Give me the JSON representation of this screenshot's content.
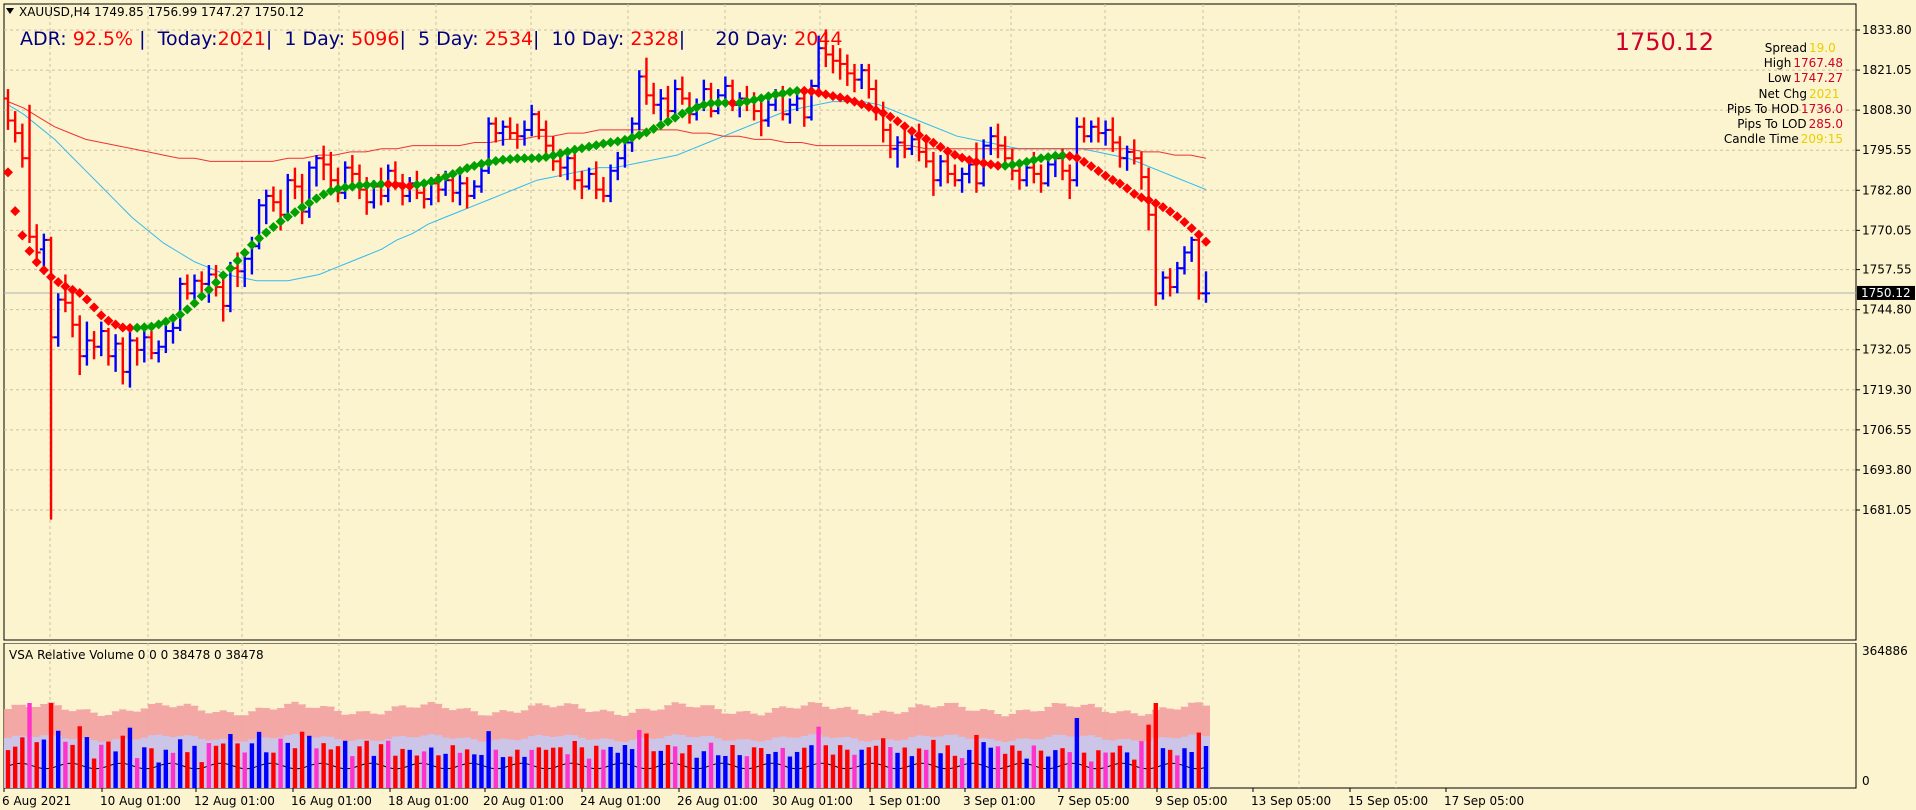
{
  "header": {
    "symbol_line": "XAUUSD,H4  1749.85 1756.99 1747.27 1750.12",
    "adr": {
      "adr_label": "ADR:",
      "adr_value": "92.5%",
      "today_label": "Today:",
      "today_value": "2021",
      "d1_label": "1 Day:",
      "d1_value": "5096",
      "d5_label": "5 Day:",
      "d5_value": "2534",
      "d10_label": "10 Day:",
      "d10_value": "2328",
      "d20_label": "20 Day:",
      "d20_value": "2044"
    }
  },
  "info_panel": {
    "price": "1750.12",
    "rows": [
      {
        "label": "Spread",
        "value": "19.0",
        "color": "#e6d000"
      },
      {
        "label": "High",
        "value": "1767.48",
        "color": "#d0002a"
      },
      {
        "label": "Low",
        "value": "1747.27",
        "color": "#d0002a"
      },
      {
        "label": "Net Chg",
        "value": "2021",
        "color": "#e6d000"
      },
      {
        "label": "Pips To HOD",
        "value": "1736.0",
        "color": "#d0002a"
      },
      {
        "label": "Pips To LOD",
        "value": "285.0",
        "color": "#d0002a"
      },
      {
        "label": "Candle Time",
        "value": "209:15",
        "color": "#e6d000"
      }
    ]
  },
  "colors": {
    "background": "#fcf3cf",
    "up_bar": "#0000ff",
    "down_bar": "#ff0000",
    "grid": "#c9c0a0",
    "ma_fast": "#33bbee",
    "ma_slow": "#ee3333",
    "trend_up": "#00a000",
    "trend_down": "#ff0000"
  },
  "volume_panel": {
    "label": "VSA Relative Volume 0 0 0 38478 0 38478",
    "y_max": "364886",
    "y_min": "0"
  },
  "current_price_label": "1750.12",
  "chart_data": {
    "type": "bar",
    "title": "XAUUSD,H4",
    "ylim": [
      1674,
      1840
    ],
    "grid": true,
    "y_ticks": [
      "1833.80",
      "1821.05",
      "1808.30",
      "1795.55",
      "1782.80",
      "1770.05",
      "1757.55",
      "1744.80",
      "1732.05",
      "1719.30",
      "1706.55",
      "1693.80",
      "1681.05"
    ],
    "x_labels": [
      "6 Aug 2021",
      "10 Aug 01:00",
      "12 Aug 01:00",
      "16 Aug 01:00",
      "18 Aug 01:00",
      "20 Aug 01:00",
      "24 Aug 01:00",
      "26 Aug 01:00",
      "30 Aug 01:00",
      "1 Sep 01:00",
      "3 Sep 01:00",
      "7 Sep 05:00",
      "9 Sep 05:00",
      "13 Sep 05:00",
      "15 Sep 05:00",
      "17 Sep 05:00"
    ],
    "bars": [
      [
        1812,
        1815,
        1802,
        1805
      ],
      [
        1805,
        1808,
        1798,
        1801
      ],
      [
        1801,
        1804,
        1790,
        1793
      ],
      [
        1793,
        1810,
        1766,
        1768
      ],
      [
        1768,
        1772,
        1760,
        1763
      ],
      [
        1764,
        1769,
        1756,
        1767
      ],
      [
        1767,
        1768,
        1678,
        1736
      ],
      [
        1736,
        1750,
        1733,
        1748
      ],
      [
        1748,
        1756,
        1744,
        1747
      ],
      [
        1747,
        1751,
        1736,
        1740
      ],
      [
        1740,
        1743,
        1724,
        1730
      ],
      [
        1730,
        1741,
        1727,
        1735
      ],
      [
        1735,
        1738,
        1729,
        1733
      ],
      [
        1733,
        1741,
        1730,
        1738
      ],
      [
        1738,
        1739,
        1727,
        1730
      ],
      [
        1730,
        1737,
        1725,
        1734
      ],
      [
        1734,
        1736,
        1721,
        1725
      ],
      [
        1725,
        1738,
        1720,
        1735
      ],
      [
        1735,
        1736,
        1727,
        1732
      ],
      [
        1732,
        1738,
        1728,
        1736
      ],
      [
        1736,
        1738,
        1729,
        1731
      ],
      [
        1731,
        1735,
        1728,
        1733
      ],
      [
        1733,
        1740,
        1731,
        1738
      ],
      [
        1738,
        1741,
        1734,
        1739
      ],
      [
        1739,
        1755,
        1738,
        1753
      ],
      [
        1753,
        1756,
        1748,
        1750
      ],
      [
        1750,
        1756,
        1746,
        1754
      ],
      [
        1754,
        1757,
        1750,
        1753
      ],
      [
        1753,
        1759,
        1747,
        1756
      ],
      [
        1756,
        1759,
        1749,
        1752
      ],
      [
        1752,
        1756,
        1741,
        1746
      ],
      [
        1746,
        1760,
        1744,
        1758
      ],
      [
        1758,
        1763,
        1752,
        1757
      ],
      [
        1757,
        1763,
        1752,
        1761
      ],
      [
        1761,
        1768,
        1756,
        1765
      ],
      [
        1765,
        1780,
        1764,
        1778
      ],
      [
        1778,
        1783,
        1772,
        1781
      ],
      [
        1781,
        1784,
        1776,
        1779
      ],
      [
        1779,
        1783,
        1770,
        1775
      ],
      [
        1775,
        1788,
        1773,
        1786
      ],
      [
        1786,
        1790,
        1780,
        1784
      ],
      [
        1784,
        1788,
        1772,
        1776
      ],
      [
        1776,
        1792,
        1774,
        1790
      ],
      [
        1790,
        1794,
        1784,
        1793
      ],
      [
        1793,
        1797,
        1786,
        1791
      ],
      [
        1791,
        1795,
        1783,
        1786
      ],
      [
        1786,
        1790,
        1779,
        1782
      ],
      [
        1782,
        1792,
        1780,
        1790
      ],
      [
        1790,
        1794,
        1785,
        1788
      ],
      [
        1788,
        1791,
        1780,
        1783
      ],
      [
        1783,
        1787,
        1775,
        1779
      ],
      [
        1779,
        1786,
        1777,
        1784
      ],
      [
        1784,
        1790,
        1778,
        1781
      ],
      [
        1781,
        1791,
        1779,
        1789
      ],
      [
        1789,
        1792,
        1783,
        1785
      ],
      [
        1785,
        1788,
        1778,
        1781
      ],
      [
        1781,
        1787,
        1779,
        1785
      ],
      [
        1785,
        1789,
        1780,
        1782
      ],
      [
        1782,
        1786,
        1777,
        1780
      ],
      [
        1780,
        1787,
        1778,
        1785
      ],
      [
        1785,
        1788,
        1779,
        1783
      ],
      [
        1783,
        1789,
        1781,
        1786
      ],
      [
        1786,
        1789,
        1779,
        1782
      ],
      [
        1782,
        1788,
        1778,
        1785
      ],
      [
        1785,
        1787,
        1777,
        1781
      ],
      [
        1781,
        1786,
        1780,
        1784
      ],
      [
        1784,
        1791,
        1782,
        1789
      ],
      [
        1789,
        1806,
        1788,
        1804
      ],
      [
        1804,
        1806,
        1798,
        1801
      ],
      [
        1801,
        1805,
        1797,
        1803
      ],
      [
        1803,
        1806,
        1799,
        1801
      ],
      [
        1801,
        1804,
        1796,
        1800
      ],
      [
        1800,
        1805,
        1797,
        1802
      ],
      [
        1802,
        1810,
        1800,
        1807
      ],
      [
        1807,
        1808,
        1799,
        1802
      ],
      [
        1802,
        1805,
        1794,
        1797
      ],
      [
        1797,
        1800,
        1789,
        1792
      ],
      [
        1792,
        1796,
        1787,
        1790
      ],
      [
        1790,
        1795,
        1786,
        1793
      ],
      [
        1793,
        1797,
        1783,
        1786
      ],
      [
        1786,
        1789,
        1780,
        1784
      ],
      [
        1784,
        1790,
        1783,
        1788
      ],
      [
        1788,
        1792,
        1780,
        1783
      ],
      [
        1783,
        1787,
        1779,
        1781
      ],
      [
        1781,
        1791,
        1779,
        1789
      ],
      [
        1789,
        1795,
        1786,
        1793
      ],
      [
        1793,
        1800,
        1790,
        1798
      ],
      [
        1798,
        1806,
        1795,
        1804
      ],
      [
        1804,
        1821,
        1802,
        1819
      ],
      [
        1819,
        1825,
        1810,
        1813
      ],
      [
        1813,
        1817,
        1807,
        1810
      ],
      [
        1810,
        1815,
        1805,
        1812
      ],
      [
        1812,
        1816,
        1806,
        1808
      ],
      [
        1808,
        1818,
        1806,
        1815
      ],
      [
        1815,
        1819,
        1810,
        1812
      ],
      [
        1812,
        1814,
        1804,
        1807
      ],
      [
        1807,
        1812,
        1805,
        1810
      ],
      [
        1810,
        1818,
        1808,
        1815
      ],
      [
        1815,
        1817,
        1806,
        1808
      ],
      [
        1808,
        1815,
        1807,
        1813
      ],
      [
        1813,
        1819,
        1811,
        1816
      ],
      [
        1816,
        1818,
        1808,
        1810
      ],
      [
        1810,
        1814,
        1806,
        1812
      ],
      [
        1812,
        1816,
        1808,
        1811
      ],
      [
        1811,
        1814,
        1805,
        1808
      ],
      [
        1808,
        1811,
        1800,
        1805
      ],
      [
        1805,
        1812,
        1803,
        1810
      ],
      [
        1810,
        1815,
        1808,
        1813
      ],
      [
        1813,
        1816,
        1805,
        1807
      ],
      [
        1807,
        1812,
        1804,
        1810
      ],
      [
        1810,
        1815,
        1808,
        1812
      ],
      [
        1812,
        1814,
        1803,
        1806
      ],
      [
        1806,
        1818,
        1805,
        1816
      ],
      [
        1816,
        1832,
        1814,
        1828
      ],
      [
        1828,
        1834,
        1822,
        1826
      ],
      [
        1826,
        1829,
        1820,
        1824
      ],
      [
        1824,
        1828,
        1818,
        1823
      ],
      [
        1823,
        1826,
        1816,
        1820
      ],
      [
        1820,
        1823,
        1814,
        1818
      ],
      [
        1818,
        1823,
        1815,
        1821
      ],
      [
        1821,
        1823,
        1812,
        1815
      ],
      [
        1815,
        1818,
        1805,
        1808
      ],
      [
        1808,
        1811,
        1798,
        1802
      ],
      [
        1802,
        1804,
        1793,
        1796
      ],
      [
        1796,
        1800,
        1790,
        1798
      ],
      [
        1798,
        1802,
        1793,
        1796
      ],
      [
        1796,
        1801,
        1794,
        1799
      ],
      [
        1799,
        1804,
        1792,
        1795
      ],
      [
        1795,
        1798,
        1790,
        1792
      ],
      [
        1792,
        1795,
        1781,
        1786
      ],
      [
        1786,
        1794,
        1784,
        1792
      ],
      [
        1792,
        1795,
        1785,
        1788
      ],
      [
        1788,
        1791,
        1784,
        1786
      ],
      [
        1786,
        1790,
        1782,
        1788
      ],
      [
        1788,
        1793,
        1785,
        1791
      ],
      [
        1791,
        1798,
        1782,
        1785
      ],
      [
        1785,
        1799,
        1784,
        1797
      ],
      [
        1797,
        1803,
        1794,
        1800
      ],
      [
        1800,
        1804,
        1793,
        1797
      ],
      [
        1797,
        1800,
        1790,
        1793
      ],
      [
        1793,
        1796,
        1786,
        1789
      ],
      [
        1789,
        1792,
        1783,
        1786
      ],
      [
        1786,
        1792,
        1784,
        1790
      ],
      [
        1790,
        1795,
        1785,
        1788
      ],
      [
        1788,
        1791,
        1782,
        1785
      ],
      [
        1785,
        1793,
        1784,
        1791
      ],
      [
        1791,
        1795,
        1787,
        1793
      ],
      [
        1793,
        1796,
        1786,
        1789
      ],
      [
        1789,
        1791,
        1780,
        1786
      ],
      [
        1786,
        1806,
        1784,
        1803
      ],
      [
        1803,
        1806,
        1798,
        1800
      ],
      [
        1800,
        1805,
        1798,
        1803
      ],
      [
        1803,
        1806,
        1798,
        1801
      ],
      [
        1801,
        1805,
        1797,
        1802
      ],
      [
        1802,
        1806,
        1795,
        1798
      ],
      [
        1798,
        1800,
        1790,
        1793
      ],
      [
        1793,
        1797,
        1789,
        1795
      ],
      [
        1795,
        1799,
        1791,
        1793
      ],
      [
        1793,
        1795,
        1783,
        1787
      ],
      [
        1787,
        1790,
        1770,
        1775
      ],
      [
        1775,
        1779,
        1746,
        1750
      ],
      [
        1750,
        1757,
        1748,
        1755
      ],
      [
        1755,
        1758,
        1749,
        1752
      ],
      [
        1752,
        1760,
        1750,
        1758
      ],
      [
        1758,
        1765,
        1756,
        1763
      ],
      [
        1763,
        1768,
        1760,
        1767
      ],
      [
        1767,
        1768,
        1748,
        1750
      ],
      [
        1750,
        1757,
        1747,
        1750
      ]
    ],
    "series": [
      {
        "type": "line",
        "values": [
          1810,
          1807,
          1803,
          1799,
          1794,
          1789,
          1784,
          1779,
          1774,
          1770,
          1766,
          1763,
          1760,
          1758,
          1756,
          1755,
          1754,
          1754,
          1754,
          1755,
          1756,
          1758,
          1760,
          1762,
          1764,
          1767,
          1769,
          1772,
          1774,
          1776,
          1778,
          1780,
          1782,
          1784,
          1786,
          1787,
          1788,
          1789,
          1790,
          1790,
          1791,
          1792,
          1793,
          1794,
          1796,
          1798,
          1800,
          1802,
          1804,
          1806,
          1808,
          1809,
          1810,
          1811,
          1811,
          1811,
          1810,
          1808,
          1806,
          1804,
          1802,
          1800,
          1799,
          1798,
          1797,
          1796,
          1796,
          1796,
          1796,
          1796,
          1795,
          1794,
          1793,
          1791,
          1789,
          1787,
          1785,
          1783
        ]
      },
      {
        "type": "line",
        "values": [
          1811,
          1809,
          1806,
          1803,
          1801,
          1799,
          1798,
          1797,
          1796,
          1795,
          1794,
          1793,
          1793,
          1792,
          1792,
          1792,
          1792,
          1792,
          1793,
          1793,
          1794,
          1794,
          1795,
          1795,
          1796,
          1796,
          1797,
          1797,
          1797,
          1797,
          1798,
          1798,
          1799,
          1799,
          1800,
          1800,
          1801,
          1801,
          1802,
          1802,
          1802,
          1802,
          1802,
          1802,
          1801,
          1801,
          1800,
          1800,
          1799,
          1799,
          1798,
          1798,
          1797,
          1797,
          1797,
          1797,
          1797,
          1797,
          1797,
          1796,
          1796,
          1796,
          1796,
          1796,
          1796,
          1796,
          1796,
          1796,
          1796,
          1796,
          1796,
          1796,
          1796,
          1795,
          1795,
          1794,
          1794,
          1793
        ]
      }
    ]
  }
}
